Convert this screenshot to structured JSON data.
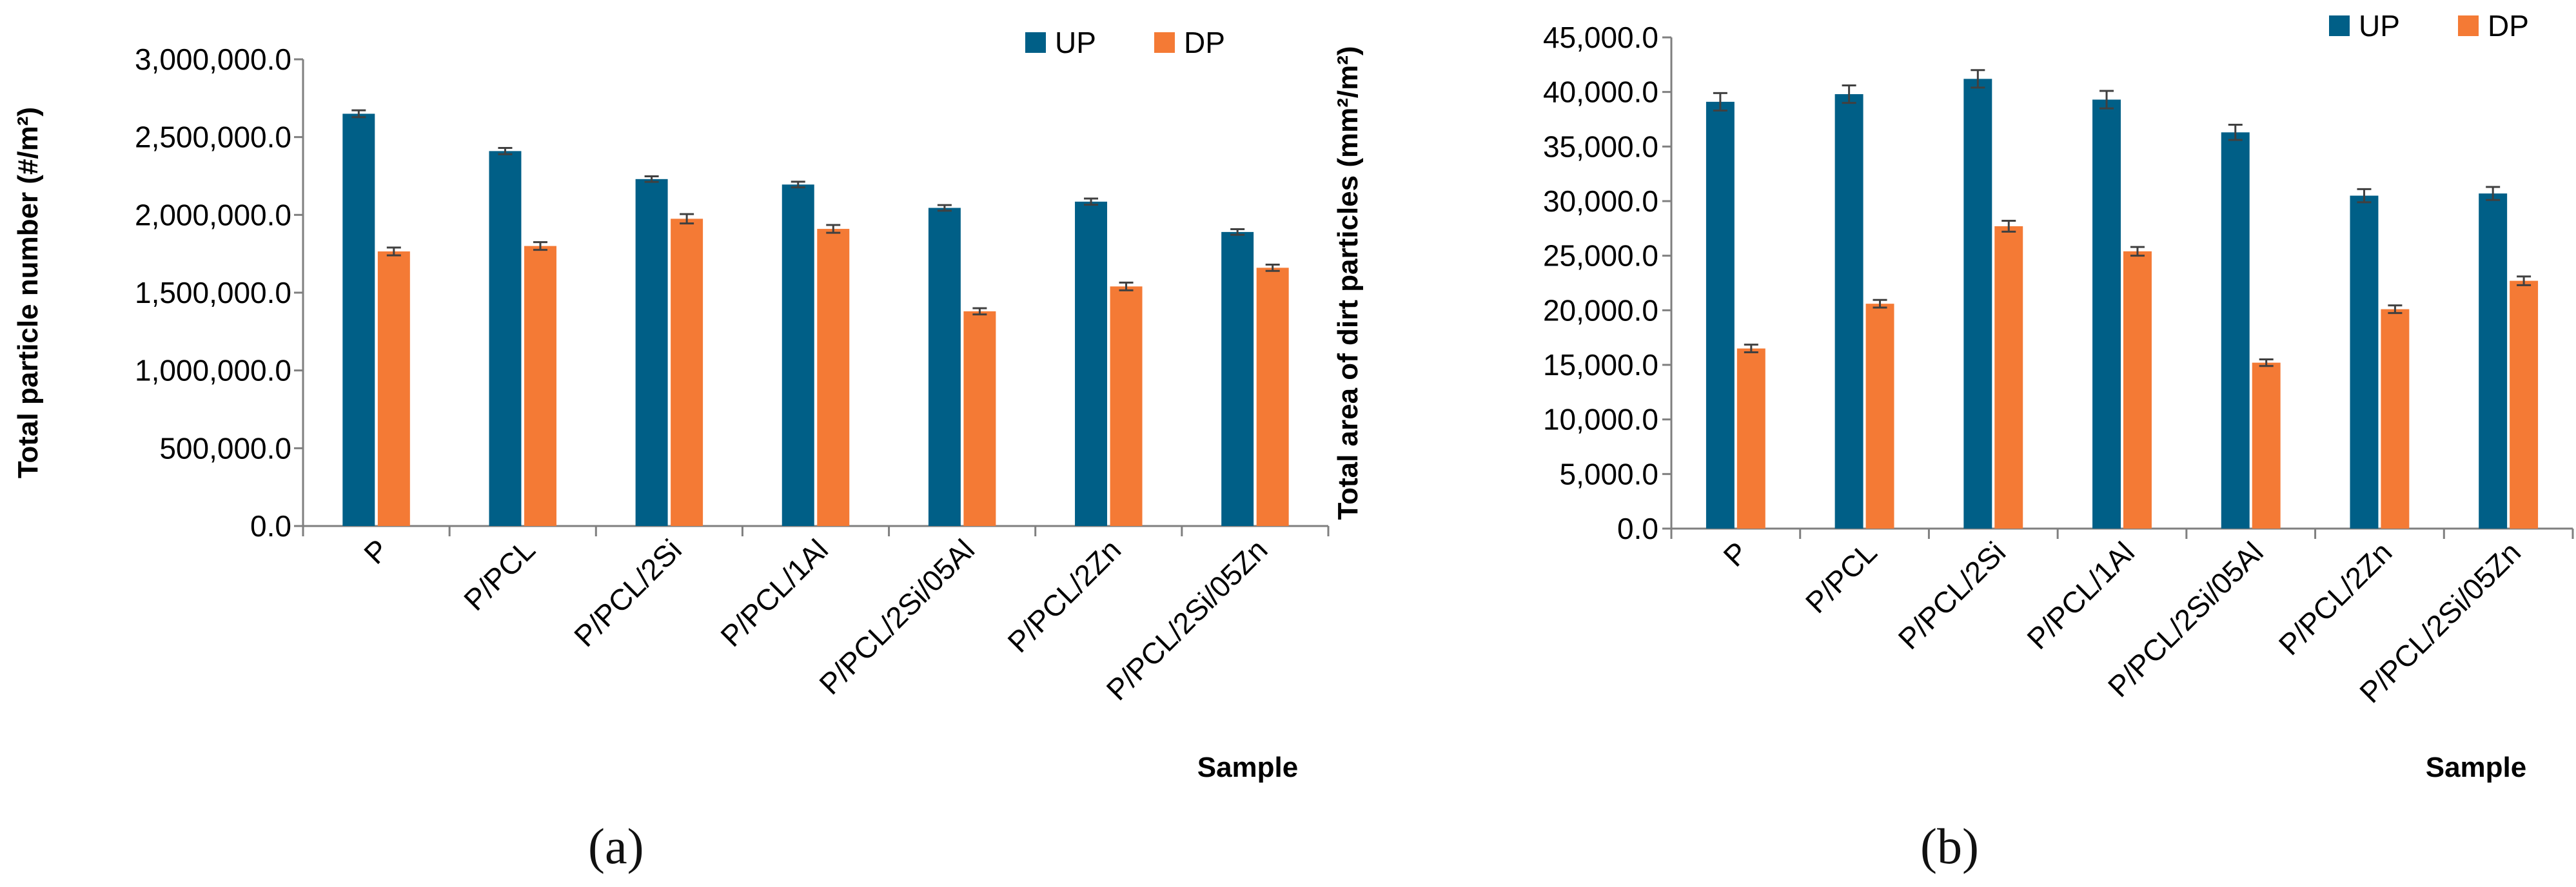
{
  "colors": {
    "UP": "#005f87",
    "DP": "#f47a35",
    "error_bar": "#404040",
    "axis": "#7f7f7f",
    "text": "#000000"
  },
  "panels": [
    {
      "label": "(a)"
    },
    {
      "label": "(b)"
    }
  ],
  "chart_data": [
    {
      "type": "bar",
      "categories": [
        "P",
        "P/PCL",
        "P/PCL/2Si",
        "P/PCL/1Al",
        "P/PCL/2Si/05Al",
        "P/PCL/2Zn",
        "P/PCL/2Si/05Zn"
      ],
      "series": [
        {
          "name": "UP",
          "values": [
            2650000,
            2410000,
            2230000,
            2195000,
            2045000,
            2085000,
            1890000
          ],
          "errors": [
            22000,
            20000,
            18000,
            18000,
            18000,
            20000,
            18000
          ]
        },
        {
          "name": "DP",
          "values": [
            1765000,
            1800000,
            1975000,
            1910000,
            1380000,
            1540000,
            1660000
          ],
          "errors": [
            25000,
            25000,
            30000,
            25000,
            20000,
            25000,
            20000
          ]
        }
      ],
      "title": "",
      "xlabel": "Sample",
      "ylabel": "Total particle number (#/m²)",
      "ylim": [
        0,
        3000000
      ],
      "yticks": [
        0,
        500000,
        1000000,
        1500000,
        2000000,
        2500000,
        3000000
      ],
      "ytick_labels": [
        "0.0",
        "500,000.0",
        "1,000,000.0",
        "1,500,000.0",
        "2,000,000.0",
        "2,500,000.0",
        "3,000,000.0"
      ],
      "legend": "top-right",
      "grid": false
    },
    {
      "type": "bar",
      "categories": [
        "P",
        "P/PCL",
        "P/PCL/2Si",
        "P/PCL/1Al",
        "P/PCL/2Si/05Al",
        "P/PCL/2Zn",
        "P/PCL/2Si/05Zn"
      ],
      "series": [
        {
          "name": "UP",
          "values": [
            39100,
            39800,
            41200,
            39300,
            36300,
            30500,
            30700
          ],
          "errors": [
            800,
            800,
            800,
            800,
            700,
            600,
            600
          ]
        },
        {
          "name": "DP",
          "values": [
            16500,
            20600,
            27700,
            25400,
            15200,
            20100,
            22700
          ],
          "errors": [
            350,
            350,
            500,
            400,
            300,
            350,
            400
          ]
        }
      ],
      "title": "",
      "xlabel": "Sample",
      "ylabel": "Total area of dirt particles (mm²/m²)",
      "ylim": [
        0,
        45000
      ],
      "yticks": [
        0,
        5000,
        10000,
        15000,
        20000,
        25000,
        30000,
        35000,
        40000,
        45000
      ],
      "ytick_labels": [
        "0.0",
        "5,000.0",
        "10,000.0",
        "15,000.0",
        "20,000.0",
        "25,000.0",
        "30,000.0",
        "35,000.0",
        "40,000.0",
        "45,000.0"
      ],
      "legend": "top-right",
      "grid": false
    }
  ]
}
